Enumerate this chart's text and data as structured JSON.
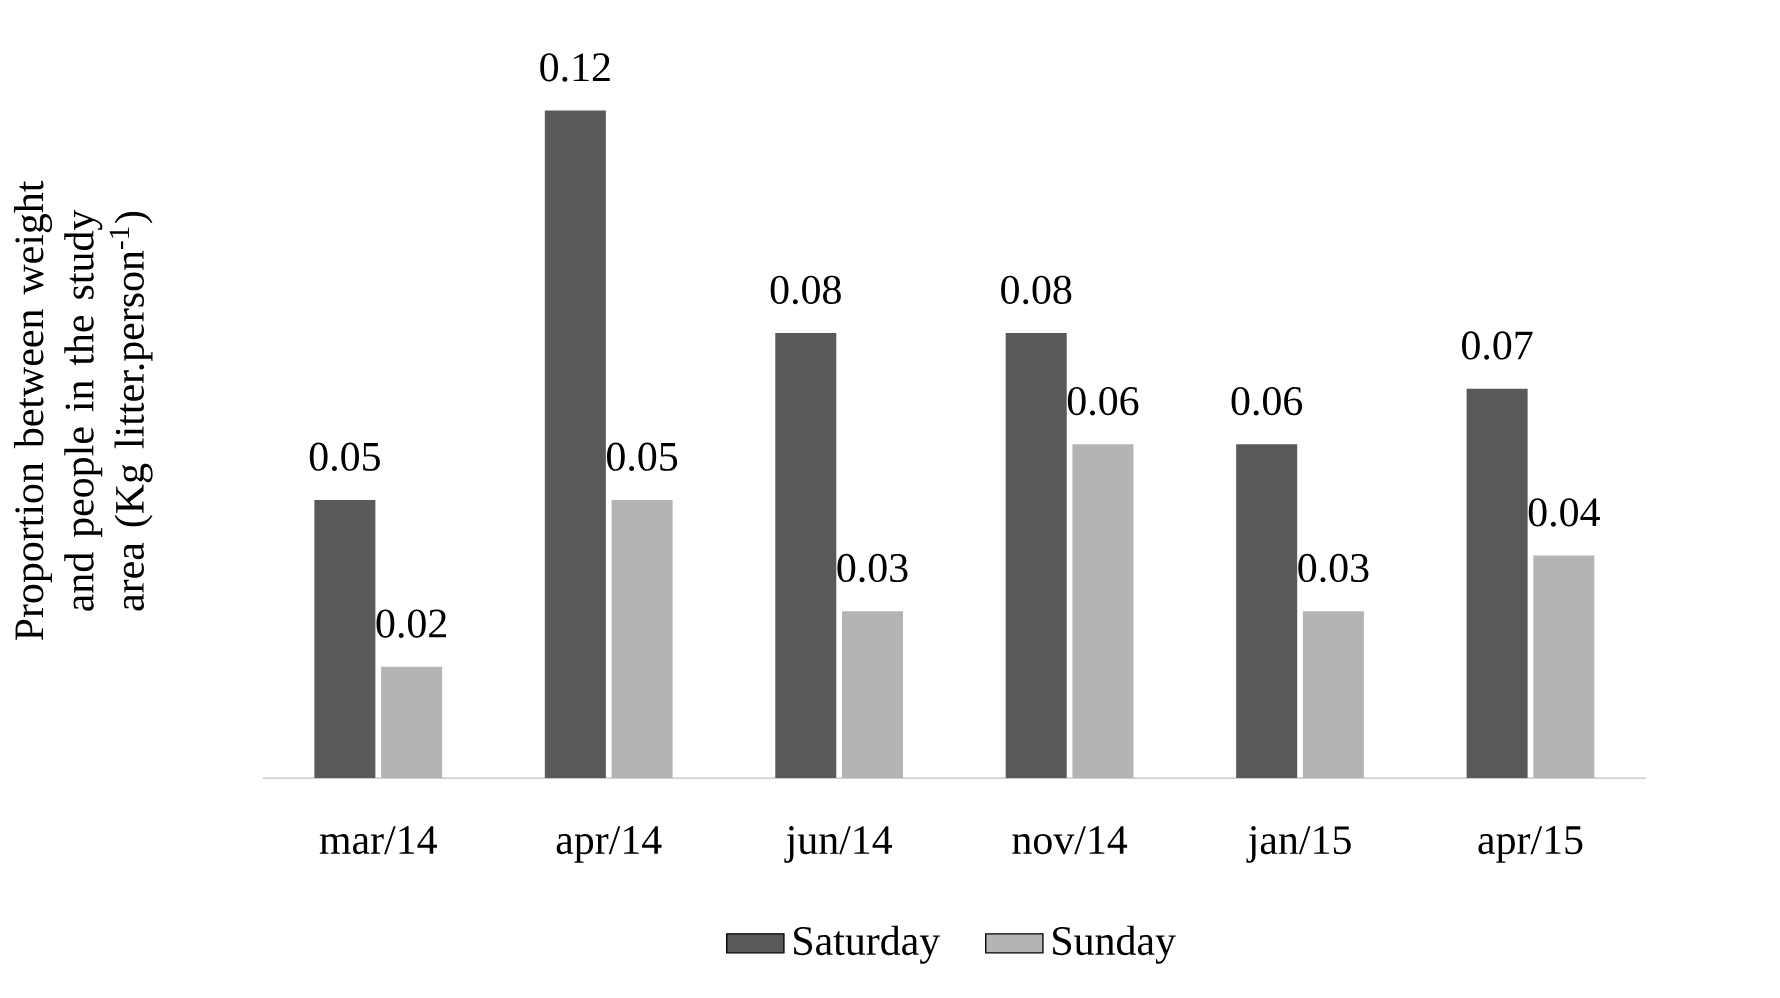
{
  "chart_data": {
    "type": "bar",
    "ylabel": "Proportion  between weight and people in the study area (Kg litter.person$^{-1}$)",
    "categories": [
      "mar/14",
      "apr/14",
      "jun/14",
      "nov/14",
      "jan/15",
      "apr/15"
    ],
    "series": [
      {
        "name": "Saturday",
        "color": "#595959",
        "values": [
          0.05,
          0.12,
          0.08,
          0.08,
          0.06,
          0.07
        ]
      },
      {
        "name": "Sunday",
        "color": "#b4b4b4",
        "values": [
          0.02,
          0.05,
          0.03,
          0.06,
          0.03,
          0.04
        ]
      }
    ],
    "data_labels": true,
    "legend": "bottom",
    "grid": false
  }
}
